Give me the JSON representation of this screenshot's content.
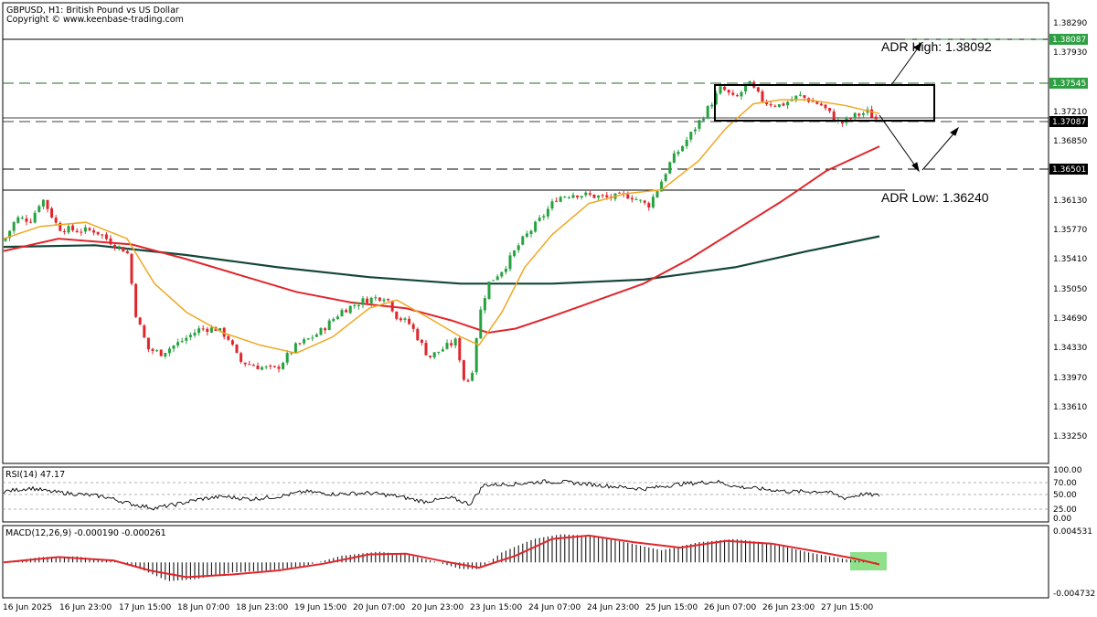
{
  "header": {
    "symbol_line": "GBPUSD, H1:  British Pound vs US Dollar",
    "copyright": "Copyright © www.keenbase-trading.com"
  },
  "annotations": {
    "adr_high": "ADR High: 1.38092",
    "adr_low": "ADR Low: 1.36240"
  },
  "price_tags": [
    "1.38087",
    "1.37545",
    "1.37087",
    "1.36501"
  ],
  "price_axis_labels": [
    "1.38290",
    "1.37930",
    "1.37210",
    "1.36850",
    "1.36130",
    "1.35770",
    "1.35410",
    "1.35050",
    "1.34690",
    "1.34330",
    "1.33970",
    "1.33610",
    "1.33250"
  ],
  "time_axis_labels": [
    "16 Jun 2025",
    "16 Jun 23:00",
    "17 Jun 15:00",
    "18 Jun 07:00",
    "18 Jun 23:00",
    "19 Jun 15:00",
    "20 Jun 07:00",
    "20 Jun 23:00",
    "23 Jun 15:00",
    "24 Jun 07:00",
    "24 Jun 23:00",
    "25 Jun 15:00",
    "26 Jun 07:00",
    "26 Jun 23:00",
    "27 Jun 15:00"
  ],
  "rsi": {
    "title": "RSI(14) 47.17",
    "levels": [
      "100.00",
      "70.00",
      "50.00",
      "25.00",
      "0.00"
    ]
  },
  "macd": {
    "title": "MACD(12,26,9) -0.000190 -0.000261",
    "levels": [
      "0.004531",
      "-0.004732"
    ]
  },
  "colors": {
    "bull": "#26a240",
    "bear": "#e0262c",
    "ma_fast": "#f0a722",
    "ma_mid": "#e0262c",
    "ma_slow": "#14463a",
    "highlight": "#8fe08a"
  },
  "chart_data": {
    "type": "candlestick",
    "symbol": "GBPUSD",
    "timeframe": "H1",
    "y_range": [
      1.3307,
      1.3847
    ],
    "key_levels": {
      "adr_high": 1.38092,
      "resistance": 1.37545,
      "current": 1.37087,
      "support": 1.36501,
      "adr_low": 1.3624
    },
    "price_path": [
      {
        "t": 0,
        "p": 1.3562
      },
      {
        "t": 14,
        "p": 1.359
      },
      {
        "t": 30,
        "p": 1.3588
      },
      {
        "t": 42,
        "p": 1.3615
      },
      {
        "t": 60,
        "p": 1.3578
      },
      {
        "t": 80,
        "p": 1.3575
      },
      {
        "t": 100,
        "p": 1.3575
      },
      {
        "t": 125,
        "p": 1.3555
      },
      {
        "t": 135,
        "p": 1.355
      },
      {
        "t": 145,
        "p": 1.347
      },
      {
        "t": 158,
        "p": 1.343
      },
      {
        "t": 172,
        "p": 1.3425
      },
      {
        "t": 195,
        "p": 1.344
      },
      {
        "t": 215,
        "p": 1.3455
      },
      {
        "t": 232,
        "p": 1.3455
      },
      {
        "t": 245,
        "p": 1.3445
      },
      {
        "t": 258,
        "p": 1.3415
      },
      {
        "t": 280,
        "p": 1.3408
      },
      {
        "t": 298,
        "p": 1.3405
      },
      {
        "t": 318,
        "p": 1.3432
      },
      {
        "t": 345,
        "p": 1.345
      },
      {
        "t": 370,
        "p": 1.3477
      },
      {
        "t": 395,
        "p": 1.349
      },
      {
        "t": 418,
        "p": 1.3495
      },
      {
        "t": 430,
        "p": 1.347
      },
      {
        "t": 445,
        "p": 1.346
      },
      {
        "t": 465,
        "p": 1.342
      },
      {
        "t": 480,
        "p": 1.343
      },
      {
        "t": 495,
        "p": 1.344
      },
      {
        "t": 505,
        "p": 1.3385
      },
      {
        "t": 512,
        "p": 1.34
      },
      {
        "t": 520,
        "p": 1.347
      },
      {
        "t": 530,
        "p": 1.351
      },
      {
        "t": 548,
        "p": 1.353
      },
      {
        "t": 565,
        "p": 1.356
      },
      {
        "t": 588,
        "p": 1.359
      },
      {
        "t": 605,
        "p": 1.3615
      },
      {
        "t": 622,
        "p": 1.362
      },
      {
        "t": 640,
        "p": 1.3618
      },
      {
        "t": 660,
        "p": 1.3615
      },
      {
        "t": 685,
        "p": 1.3618
      },
      {
        "t": 705,
        "p": 1.3605
      },
      {
        "t": 715,
        "p": 1.3625
      },
      {
        "t": 730,
        "p": 1.366
      },
      {
        "t": 750,
        "p": 1.369
      },
      {
        "t": 768,
        "p": 1.372
      },
      {
        "t": 785,
        "p": 1.375
      },
      {
        "t": 800,
        "p": 1.3735
      },
      {
        "t": 815,
        "p": 1.3755
      },
      {
        "t": 832,
        "p": 1.3732
      },
      {
        "t": 850,
        "p": 1.3728
      },
      {
        "t": 870,
        "p": 1.374
      },
      {
        "t": 895,
        "p": 1.3728
      },
      {
        "t": 915,
        "p": 1.3705
      },
      {
        "t": 930,
        "p": 1.3715
      },
      {
        "t": 945,
        "p": 1.372
      },
      {
        "t": 958,
        "p": 1.3708
      }
    ],
    "ma_fast": [
      [
        0,
        1.3565
      ],
      [
        40,
        1.358
      ],
      [
        90,
        1.3585
      ],
      [
        135,
        1.3565
      ],
      [
        165,
        1.351
      ],
      [
        200,
        1.3475
      ],
      [
        240,
        1.345
      ],
      [
        280,
        1.3435
      ],
      [
        320,
        1.3425
      ],
      [
        360,
        1.3445
      ],
      [
        400,
        1.348
      ],
      [
        430,
        1.349
      ],
      [
        470,
        1.3465
      ],
      [
        500,
        1.3445
      ],
      [
        520,
        1.3435
      ],
      [
        545,
        1.3475
      ],
      [
        570,
        1.353
      ],
      [
        600,
        1.357
      ],
      [
        640,
        1.3608
      ],
      [
        680,
        1.362
      ],
      [
        720,
        1.3625
      ],
      [
        760,
        1.366
      ],
      [
        790,
        1.37
      ],
      [
        820,
        1.373
      ],
      [
        850,
        1.3735
      ],
      [
        880,
        1.3735
      ],
      [
        920,
        1.3728
      ],
      [
        958,
        1.3718
      ]
    ],
    "ma_mid": [
      [
        0,
        1.355
      ],
      [
        60,
        1.3565
      ],
      [
        140,
        1.3558
      ],
      [
        200,
        1.354
      ],
      [
        260,
        1.352
      ],
      [
        320,
        1.35
      ],
      [
        380,
        1.3487
      ],
      [
        440,
        1.348
      ],
      [
        490,
        1.3465
      ],
      [
        530,
        1.345
      ],
      [
        560,
        1.3455
      ],
      [
        600,
        1.347
      ],
      [
        650,
        1.349
      ],
      [
        700,
        1.351
      ],
      [
        750,
        1.354
      ],
      [
        800,
        1.3575
      ],
      [
        850,
        1.361
      ],
      [
        900,
        1.3648
      ],
      [
        958,
        1.3678
      ]
    ],
    "ma_slow": [
      [
        0,
        1.3555
      ],
      [
        100,
        1.3557
      ],
      [
        200,
        1.3545
      ],
      [
        300,
        1.353
      ],
      [
        400,
        1.3518
      ],
      [
        500,
        1.351
      ],
      [
        600,
        1.351
      ],
      [
        700,
        1.3515
      ],
      [
        800,
        1.353
      ],
      [
        880,
        1.355
      ],
      [
        958,
        1.3568
      ]
    ],
    "rsi_series": [
      [
        0,
        55
      ],
      [
        30,
        62
      ],
      [
        50,
        55
      ],
      [
        80,
        50
      ],
      [
        110,
        45
      ],
      [
        140,
        30
      ],
      [
        165,
        22
      ],
      [
        190,
        30
      ],
      [
        215,
        40
      ],
      [
        240,
        45
      ],
      [
        270,
        40
      ],
      [
        300,
        45
      ],
      [
        330,
        55
      ],
      [
        360,
        50
      ],
      [
        400,
        52
      ],
      [
        430,
        46
      ],
      [
        460,
        35
      ],
      [
        490,
        42
      ],
      [
        510,
        30
      ],
      [
        525,
        68
      ],
      [
        560,
        70
      ],
      [
        590,
        75
      ],
      [
        620,
        73
      ],
      [
        650,
        68
      ],
      [
        700,
        60
      ],
      [
        740,
        70
      ],
      [
        780,
        75
      ],
      [
        800,
        65
      ],
      [
        830,
        60
      ],
      [
        860,
        55
      ],
      [
        900,
        55
      ],
      [
        920,
        42
      ],
      [
        940,
        50
      ],
      [
        958,
        47
      ]
    ],
    "macd_series": [
      [
        0,
        0.0
      ],
      [
        40,
        0.0008
      ],
      [
        80,
        0.0009
      ],
      [
        120,
        0.0002
      ],
      [
        150,
        -0.001
      ],
      [
        180,
        -0.0028
      ],
      [
        210,
        -0.0025
      ],
      [
        250,
        -0.0015
      ],
      [
        290,
        -0.0012
      ],
      [
        330,
        -0.0005
      ],
      [
        370,
        0.001
      ],
      [
        410,
        0.0016
      ],
      [
        440,
        0.0012
      ],
      [
        470,
        0.0002
      ],
      [
        500,
        -0.001
      ],
      [
        520,
        -0.001
      ],
      [
        545,
        0.0015
      ],
      [
        580,
        0.0035
      ],
      [
        610,
        0.0042
      ],
      [
        640,
        0.004
      ],
      [
        680,
        0.003
      ],
      [
        720,
        0.0018
      ],
      [
        760,
        0.003
      ],
      [
        800,
        0.0035
      ],
      [
        840,
        0.0028
      ],
      [
        880,
        0.0015
      ],
      [
        920,
        0.0005
      ],
      [
        958,
        -0.0002
      ]
    ],
    "macd_signal": [
      [
        0,
        0.0
      ],
      [
        60,
        0.0008
      ],
      [
        120,
        0.0003
      ],
      [
        160,
        -0.0012
      ],
      [
        200,
        -0.0022
      ],
      [
        250,
        -0.0018
      ],
      [
        300,
        -0.0012
      ],
      [
        350,
        -0.0002
      ],
      [
        400,
        0.0012
      ],
      [
        440,
        0.0013
      ],
      [
        480,
        0.0002
      ],
      [
        520,
        -0.0008
      ],
      [
        560,
        0.001
      ],
      [
        600,
        0.0035
      ],
      [
        640,
        0.004
      ],
      [
        690,
        0.003
      ],
      [
        740,
        0.0022
      ],
      [
        790,
        0.0032
      ],
      [
        840,
        0.0028
      ],
      [
        890,
        0.0016
      ],
      [
        930,
        0.0006
      ],
      [
        958,
        -0.0003
      ]
    ]
  }
}
